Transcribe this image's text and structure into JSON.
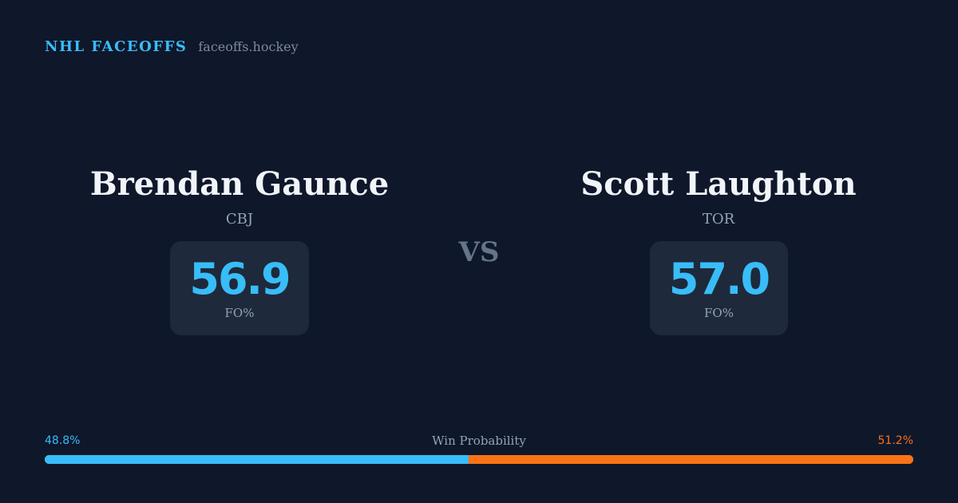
{
  "brand": {
    "name": "NHL FACEOFFS",
    "domain": "faceoffs.hockey"
  },
  "colors": {
    "background": "#0f172a",
    "accent": "#38bdf8",
    "opponent_accent": "#f97316",
    "card": "#1e293b"
  },
  "matchup": {
    "vs_label": "VS",
    "left_player": {
      "name": "Brendan Gaunce",
      "team": "CBJ",
      "stat_value": "56.9",
      "stat_label": "FO%"
    },
    "right_player": {
      "name": "Scott Laughton",
      "team": "TOR",
      "stat_value": "57.0",
      "stat_label": "FO%"
    }
  },
  "win_probability": {
    "title": "Win Probability",
    "left_label": "48.8%",
    "right_label": "51.2%",
    "left_value": 48.8,
    "right_value": 51.2
  }
}
